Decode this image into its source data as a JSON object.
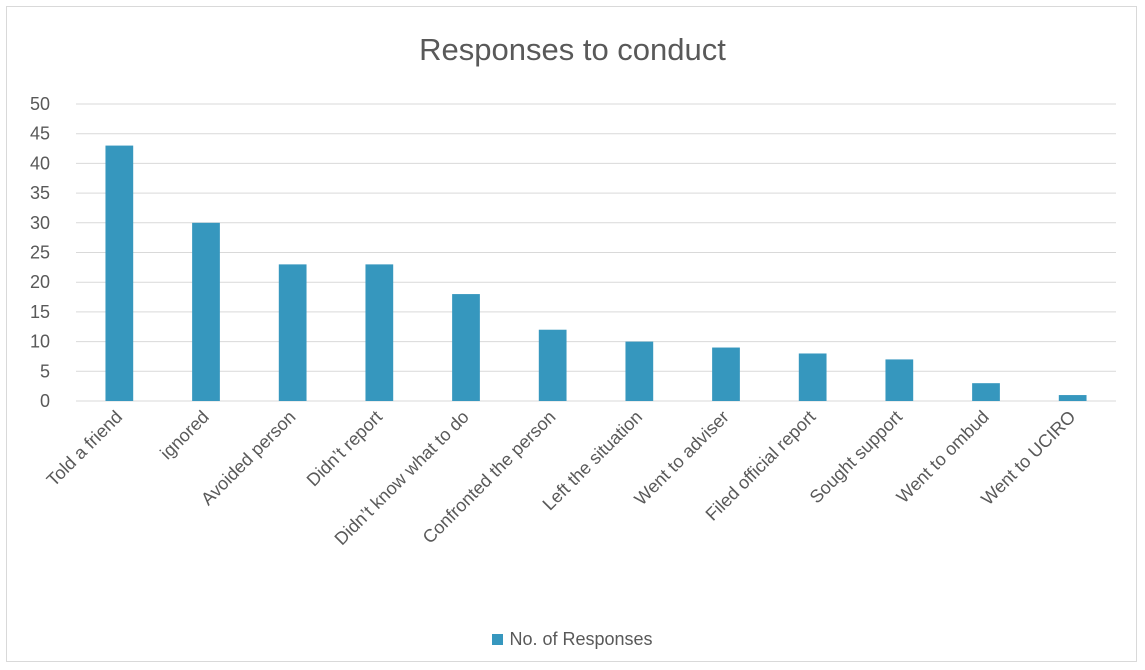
{
  "chart_data": {
    "type": "bar",
    "title": "Responses to conduct",
    "categories": [
      "Told a friend",
      "ignored",
      "Avoided person",
      "Didn’t report",
      "Didn’t know what to do",
      "Confronted the person",
      "Left the situation",
      "Went to adviser",
      "Filed official report",
      "Sought support",
      "Went to ombud",
      "Went to UCIRO"
    ],
    "series": [
      {
        "name": "No. of Responses",
        "values": [
          43,
          30,
          23,
          23,
          18,
          12,
          10,
          9,
          8,
          7,
          3,
          1
        ],
        "color": "#3697be"
      }
    ],
    "ylim": [
      0,
      50
    ],
    "yticks": [
      0,
      5,
      10,
      15,
      20,
      25,
      30,
      35,
      40,
      45,
      50
    ],
    "grid": true,
    "legend_position": "bottom",
    "gridline_color": "#d9d9d9",
    "text_color": "#595959"
  }
}
